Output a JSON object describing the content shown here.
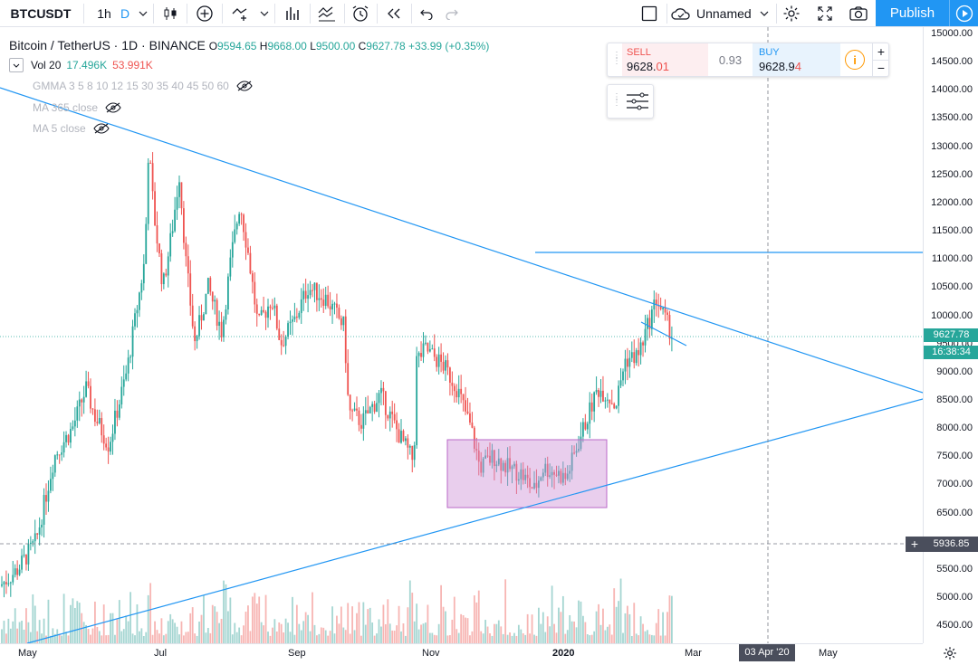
{
  "toolbar": {
    "symbol": "BTCUSDT",
    "interval": "1h",
    "interval_d": "D",
    "layout_name": "Unnamed",
    "publish_label": "Publish"
  },
  "legend": {
    "title": "Bitcoin / TetherUS · 1D · BINANCE",
    "open_label": "O",
    "open": "9594.65",
    "high_label": "H",
    "high": "9668.00",
    "low_label": "L",
    "low": "9500.00",
    "close_label": "C",
    "close": "9627.78",
    "change": "+33.99 (+0.35%)"
  },
  "indicators": {
    "vol_label": "Vol 20",
    "vol_a": "17.496K",
    "vol_b": "53.991K",
    "gmma": "GMMA 3 5 8 10 12 15 30 35 40 45 50 60",
    "ma365": "MA 365 close",
    "ma5": "MA 5 close"
  },
  "trade_panel": {
    "sell_label": "SELL",
    "sell_price_main": "9628.",
    "sell_price_tail": "01",
    "spread": "0.93",
    "buy_label": "BUY",
    "buy_price_main": "9628.9",
    "buy_price_tail": "4",
    "plus": "+",
    "minus": "−"
  },
  "price_axis": {
    "ticks": [
      "15000.00",
      "14500.00",
      "14000.00",
      "13500.00",
      "13000.00",
      "12500.00",
      "12000.00",
      "11500.00",
      "11000.00",
      "10500.00",
      "10000.00",
      "9500.00",
      "9000.00",
      "8500.00",
      "8000.00",
      "7500.00",
      "7000.00",
      "6500.00",
      "6000.00",
      "5500.00",
      "5000.00",
      "4500.00"
    ],
    "current_price": "9627.78",
    "countdown": "16:38:34",
    "crosshair_price": "5936.85"
  },
  "time_axis": {
    "ticks": [
      "May",
      "Jul",
      "Sep",
      "Nov",
      "2020",
      "Mar",
      "May"
    ],
    "crosshair_date": "03 Apr '20"
  },
  "colors": {
    "up": "#26a69a",
    "down": "#ef5350",
    "accent": "#2196f3",
    "trendline": "#2196f3",
    "box": "#e1bee7"
  }
}
